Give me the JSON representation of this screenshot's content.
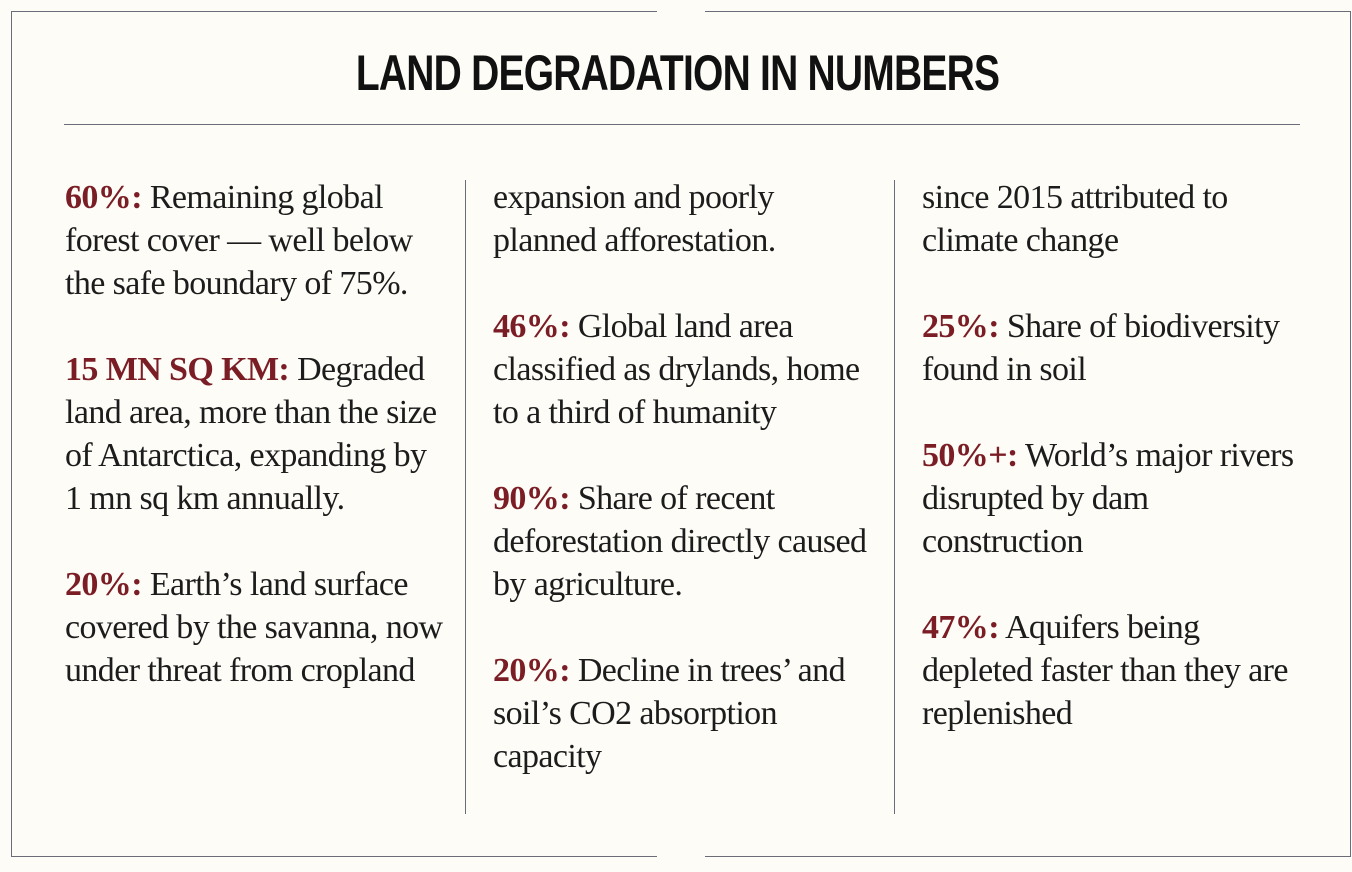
{
  "title": "LAND DEGRADATION IN NUMBERS",
  "colors": {
    "highlight": "#7a1d24",
    "rule": "#6a6d78",
    "background": "#fdfcf7"
  },
  "columns": [
    {
      "items": [
        {
          "stat": "60%:",
          "text": " Remaining global forest cover — well below the safe boundary of 75%."
        },
        {
          "stat": "15 MN SQ KM:",
          "text": "  Degraded land area, more than the size of Antarctica, expanding by 1 mn sq km annually."
        },
        {
          "stat": "20%:",
          "text": " Earth’s land surface covered by the savanna, now under threat from cropland"
        }
      ]
    },
    {
      "items": [
        {
          "stat": "",
          "text": "expansion and poorly planned afforestation."
        },
        {
          "stat": "46%:",
          "text": " Global land area classified as drylands, home to a third of humanity"
        },
        {
          "stat": "90%:",
          "text": " Share of recent deforestation directly caused by agriculture."
        },
        {
          "stat": "20%:",
          "text": " Decline in trees’ and soil’s CO2 absorption capacity"
        }
      ]
    },
    {
      "items": [
        {
          "stat": "",
          "text": "since 2015 attributed to climate change"
        },
        {
          "stat": "25%:",
          "text": " Share of biodiversity found in soil"
        },
        {
          "stat": "50%+:",
          "text": " World’s major rivers disrupted by dam construction"
        },
        {
          "stat": "47%:",
          "text": " Aquifers being depleted faster than they are replenished"
        }
      ]
    }
  ]
}
